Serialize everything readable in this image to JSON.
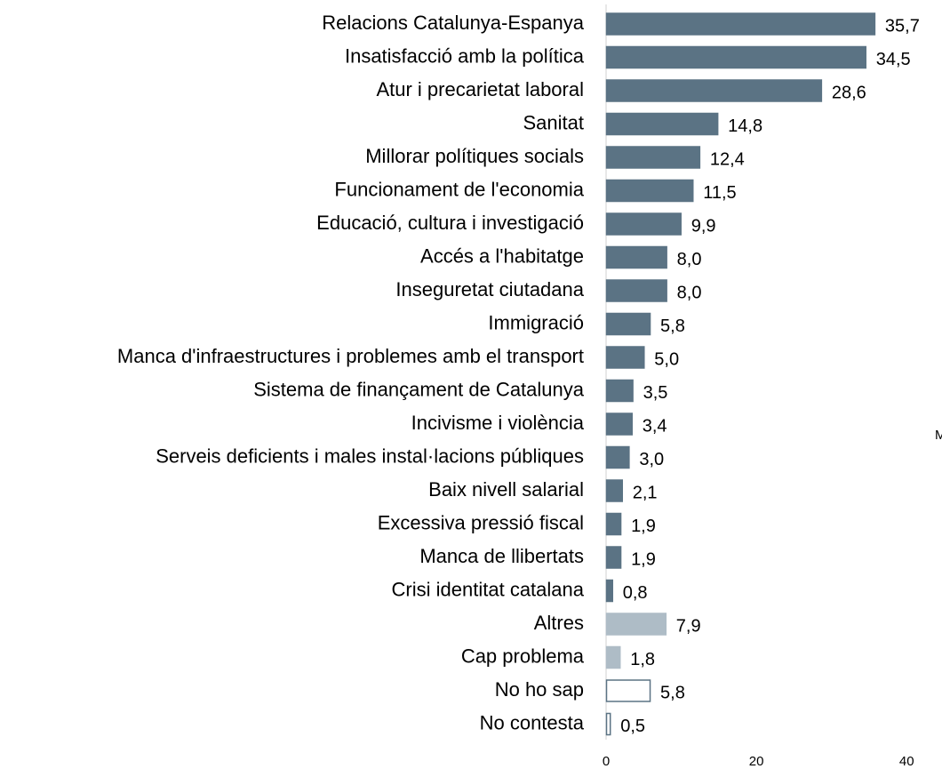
{
  "chart_data": {
    "type": "barh",
    "categories": [
      "Relacions Catalunya-Espanya",
      "Insatisfacció amb la política",
      "Atur i precarietat laboral",
      "Sanitat",
      "Millorar polítiques socials",
      "Funcionament de l'economia",
      "Educació, cultura i investigació",
      "Accés a l'habitatge",
      "Inseguretat ciutadana",
      "Immigració",
      "Manca d'infraestructures i problemes amb el transport",
      "Sistema de finançament de Catalunya",
      "Incivisme i violència",
      "Serveis deficients i males instal·lacions públiques",
      "Baix nivell salarial",
      "Excessiva pressió fiscal",
      "Manca de llibertats",
      "Crisi identitat catalana",
      "Altres",
      "Cap problema",
      "No ho sap",
      "No contesta"
    ],
    "values": [
      35.7,
      34.5,
      28.6,
      14.8,
      12.4,
      11.5,
      9.9,
      8.0,
      8.0,
      5.8,
      5.0,
      3.5,
      3.4,
      3.0,
      2.1,
      1.9,
      1.9,
      0.8,
      7.9,
      1.8,
      5.8,
      0.5
    ],
    "value_labels": [
      "35,7",
      "34,5",
      "28,6",
      "14,8",
      "12,4",
      "11,5",
      "9,9",
      "8,0",
      "8,0",
      "5,8",
      "5,0",
      "3,5",
      "3,4",
      "3,0",
      "2,1",
      "1,9",
      "1,9",
      "0,8",
      "7,9",
      "1,8",
      "5,8",
      "0,5"
    ],
    "colors": [
      "#5b7384",
      "#5b7384",
      "#5b7384",
      "#5b7384",
      "#5b7384",
      "#5b7384",
      "#5b7384",
      "#5b7384",
      "#5b7384",
      "#5b7384",
      "#5b7384",
      "#5b7384",
      "#5b7384",
      "#5b7384",
      "#5b7384",
      "#5b7384",
      "#5b7384",
      "#5b7384",
      "#aebcc6",
      "#aebcc6",
      "#ffffff",
      "#ffffff"
    ],
    "edgecolors": [
      "#5b7384",
      "#5b7384",
      "#5b7384",
      "#5b7384",
      "#5b7384",
      "#5b7384",
      "#5b7384",
      "#5b7384",
      "#5b7384",
      "#5b7384",
      "#5b7384",
      "#5b7384",
      "#5b7384",
      "#5b7384",
      "#5b7384",
      "#5b7384",
      "#5b7384",
      "#5b7384",
      "#aebcc6",
      "#aebcc6",
      "#5b7384",
      "#5b7384"
    ],
    "xlim": [
      0,
      44.7
    ],
    "xticks": [
      0,
      20,
      40
    ],
    "annotation": "M"
  }
}
